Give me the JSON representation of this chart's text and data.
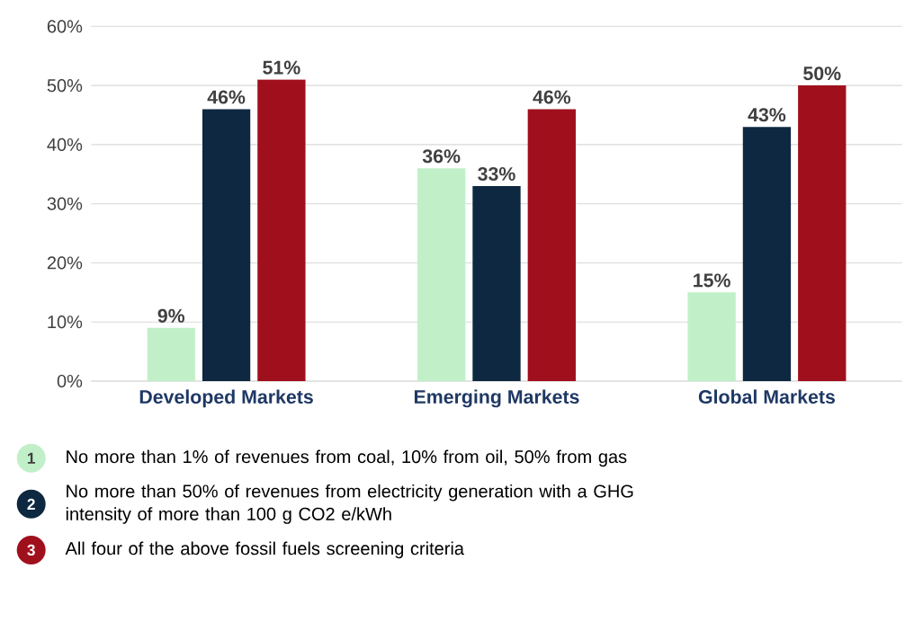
{
  "chart_data": {
    "type": "bar",
    "categories": [
      "Developed Markets",
      "Emerging Markets",
      "Global Markets"
    ],
    "series": [
      {
        "name": "No more than 1% of revenues from coal, 10% from oil, 50% from gas",
        "color": "#c1f0c8",
        "values": [
          9,
          36,
          15
        ],
        "value_labels": [
          "9%",
          "36%",
          "15%"
        ]
      },
      {
        "name": "No more than 50% of revenues from electricity generation with a GHG intensity of more than 100 g CO2 e/kWh",
        "color": "#0e2841",
        "values": [
          46,
          33,
          43
        ],
        "value_labels": [
          "46%",
          "33%",
          "43%"
        ]
      },
      {
        "name": "All four of the above fossil fuels screening criteria",
        "color": "#a0101c",
        "values": [
          51,
          46,
          50
        ],
        "value_labels": [
          "51%",
          "46%",
          "50%"
        ]
      }
    ],
    "ylim": [
      0,
      60
    ],
    "yticks": [
      {
        "value": 0,
        "label": "0%"
      },
      {
        "value": 10,
        "label": "10%"
      },
      {
        "value": 20,
        "label": "20%"
      },
      {
        "value": 30,
        "label": "30%"
      },
      {
        "value": 40,
        "label": "40%"
      },
      {
        "value": 50,
        "label": "50%"
      },
      {
        "value": 60,
        "label": "60%"
      }
    ],
    "grid": "y",
    "legend": "bottom",
    "annotations": [
      "1",
      "2",
      "3"
    ]
  }
}
